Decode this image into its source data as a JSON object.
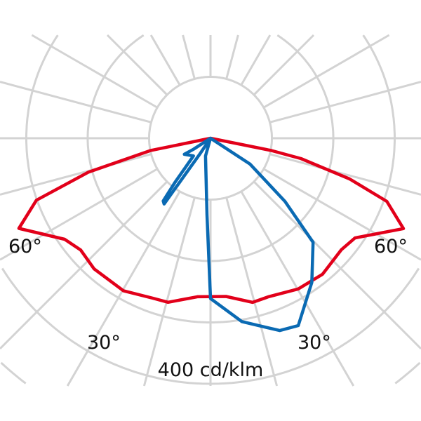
{
  "chart_data": {
    "type": "polar-line",
    "angle_reference": "0 deg = nadir (down), negative = left, positive = right",
    "angle_grid_step_deg": 15,
    "radial_grid": [
      100,
      200,
      300,
      400
    ],
    "radial_max": 400,
    "grid": true,
    "angle_labels": [
      {
        "text": "60°",
        "angle": -60
      },
      {
        "text": "60°",
        "angle": 60
      },
      {
        "text": "30°",
        "angle": -30
      },
      {
        "text": "30°",
        "angle": 30
      }
    ],
    "scale_label": "400 cd/klm",
    "series": [
      {
        "color": "#e2001a",
        "points": [
          [
            -90,
            0
          ],
          [
            -78.4,
            100
          ],
          [
            -74.5,
            206
          ],
          [
            -70.4,
            301
          ],
          [
            -64.8,
            345
          ],
          [
            -55.3,
            289
          ],
          [
            -49.3,
            279
          ],
          [
            -41.7,
            285
          ],
          [
            -29.7,
            286
          ],
          [
            -19.8,
            277
          ],
          [
            -14.5,
            276
          ],
          [
            -4.7,
            259
          ],
          [
            0,
            258
          ],
          [
            5.6,
            259
          ],
          [
            14.4,
            276
          ],
          [
            20.2,
            275
          ],
          [
            30.2,
            284
          ],
          [
            39.5,
            287
          ],
          [
            49.6,
            280
          ],
          [
            55.4,
            286
          ],
          [
            64.9,
            347
          ],
          [
            70.3,
            305
          ],
          [
            73.7,
            236
          ],
          [
            77.3,
            151
          ],
          [
            78.6,
            101
          ],
          [
            90,
            0
          ]
        ]
      },
      {
        "color": "#0a6ab3",
        "points": [
          [
            0,
            0
          ],
          [
            -15.6,
            30
          ],
          [
            -2.6,
            125
          ],
          [
            0,
            261
          ],
          [
            9.7,
            303
          ],
          [
            19.8,
            333
          ],
          [
            25.1,
            337
          ],
          [
            35.1,
            287
          ],
          [
            44.6,
            238
          ],
          [
            49.7,
            159
          ],
          [
            56.8,
            77
          ],
          [
            0,
            0
          ],
          [
            -34,
            30
          ],
          [
            -35.2,
            131
          ],
          [
            -37,
            128
          ],
          [
            -38.8,
            93
          ],
          [
            -44,
            40
          ],
          [
            -58.5,
            50
          ],
          [
            -57,
            33
          ],
          [
            0,
            0
          ]
        ]
      }
    ]
  }
}
